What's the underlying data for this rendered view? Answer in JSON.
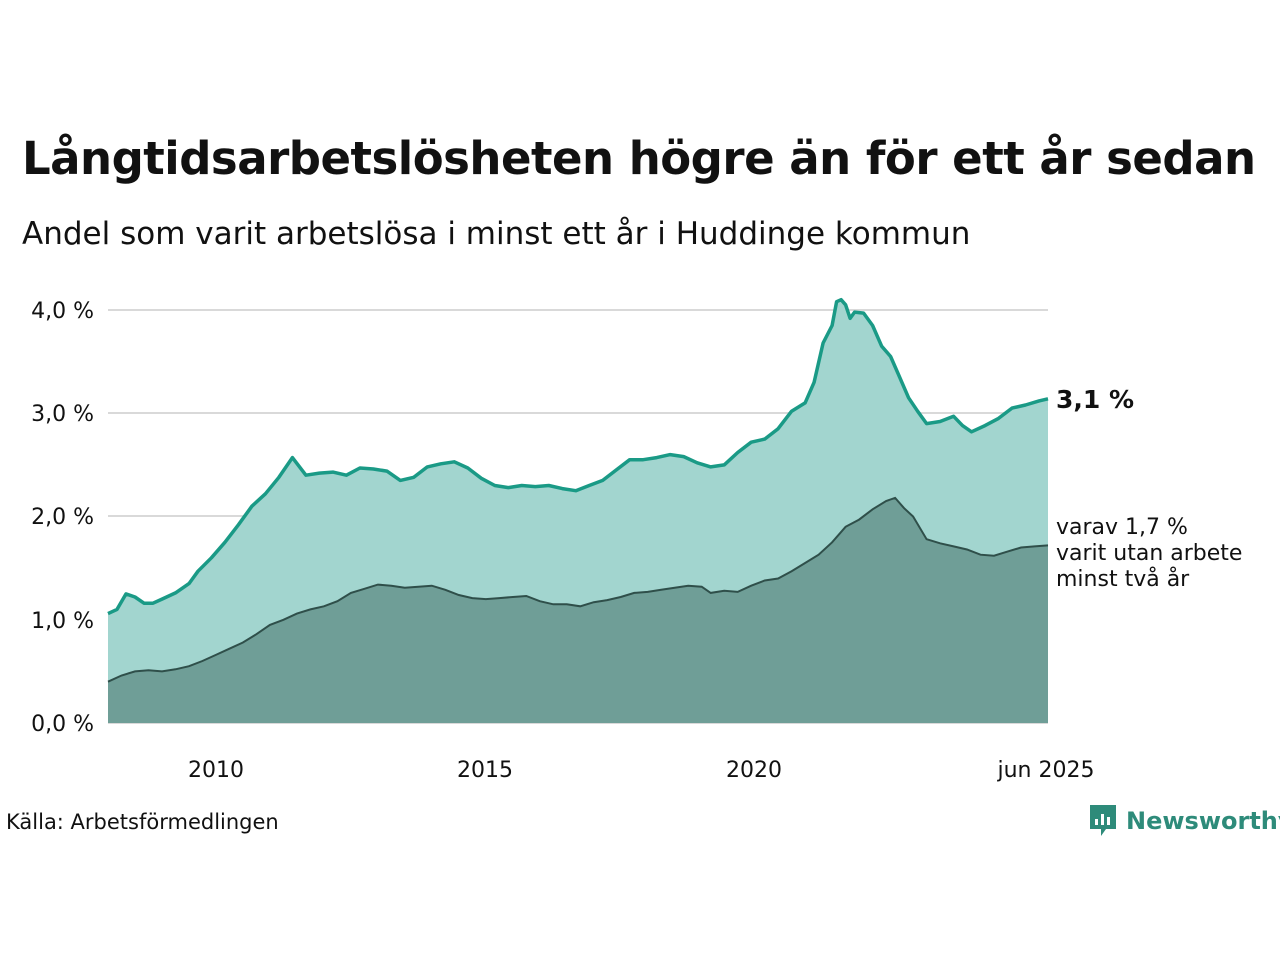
{
  "header": {
    "title": "Långtidsarbetslösheten högre än för ett år sedan",
    "subtitle": "Andel som varit arbetslösa i minst ett år i Huddinge kommun"
  },
  "footer": {
    "source": "Källa: Arbetsförmedlingen",
    "brand": "Newsworthy"
  },
  "colors": {
    "upper_line": "#1a9a86",
    "upper_fill": "#a2d5cf",
    "lower_line": "#2f4f4a",
    "lower_fill": "#6f9e97",
    "grid": "#d9d9d9",
    "brand": "#2e8b7a"
  },
  "chart_data": {
    "type": "area",
    "x_range": [
      "2008-01",
      "2025-06"
    ],
    "ylim": [
      0,
      4.0
    ],
    "y_ticks": [
      {
        "value": 0,
        "label": "0,0 %"
      },
      {
        "value": 1,
        "label": "1,0 %"
      },
      {
        "value": 2,
        "label": "2,0 %"
      },
      {
        "value": 3,
        "label": "3,0 %"
      },
      {
        "value": 4,
        "label": "4,0 %"
      }
    ],
    "x_ticks": [
      {
        "date": "2010-01",
        "label": "2010"
      },
      {
        "date": "2015-01",
        "label": "2015"
      },
      {
        "date": "2020-01",
        "label": "2020"
      },
      {
        "date": "2025-06",
        "label": "jun 2025"
      }
    ],
    "grid": true,
    "annotations": {
      "upper_value": "3,1 %",
      "lower_lines": [
        "varav 1,7 %",
        "varit utan arbete",
        "minst två år"
      ]
    },
    "series": [
      {
        "key": "minst_ett_ar",
        "points": [
          [
            "2008-01",
            1.06
          ],
          [
            "2008-03",
            1.1
          ],
          [
            "2008-05",
            1.25
          ],
          [
            "2008-07",
            1.22
          ],
          [
            "2008-09",
            1.16
          ],
          [
            "2008-11",
            1.16
          ],
          [
            "2009-01",
            1.2
          ],
          [
            "2009-04",
            1.26
          ],
          [
            "2009-07",
            1.35
          ],
          [
            "2009-09",
            1.47
          ],
          [
            "2009-12",
            1.6
          ],
          [
            "2010-03",
            1.75
          ],
          [
            "2010-06",
            1.92
          ],
          [
            "2010-09",
            2.1
          ],
          [
            "2010-12",
            2.22
          ],
          [
            "2011-03",
            2.38
          ],
          [
            "2011-06",
            2.57
          ],
          [
            "2011-09",
            2.4
          ],
          [
            "2011-12",
            2.42
          ],
          [
            "2012-03",
            2.43
          ],
          [
            "2012-06",
            2.4
          ],
          [
            "2012-09",
            2.47
          ],
          [
            "2012-12",
            2.46
          ],
          [
            "2013-03",
            2.44
          ],
          [
            "2013-06",
            2.35
          ],
          [
            "2013-09",
            2.38
          ],
          [
            "2013-12",
            2.48
          ],
          [
            "2014-03",
            2.51
          ],
          [
            "2014-06",
            2.53
          ],
          [
            "2014-09",
            2.47
          ],
          [
            "2014-12",
            2.37
          ],
          [
            "2015-03",
            2.3
          ],
          [
            "2015-06",
            2.28
          ],
          [
            "2015-09",
            2.3
          ],
          [
            "2015-12",
            2.29
          ],
          [
            "2016-03",
            2.3
          ],
          [
            "2016-06",
            2.27
          ],
          [
            "2016-09",
            2.25
          ],
          [
            "2016-12",
            2.3
          ],
          [
            "2017-03",
            2.35
          ],
          [
            "2017-06",
            2.45
          ],
          [
            "2017-09",
            2.55
          ],
          [
            "2017-12",
            2.55
          ],
          [
            "2018-03",
            2.57
          ],
          [
            "2018-06",
            2.6
          ],
          [
            "2018-09",
            2.58
          ],
          [
            "2018-12",
            2.52
          ],
          [
            "2019-03",
            2.48
          ],
          [
            "2019-06",
            2.5
          ],
          [
            "2019-09",
            2.62
          ],
          [
            "2019-12",
            2.72
          ],
          [
            "2020-03",
            2.75
          ],
          [
            "2020-06",
            2.85
          ],
          [
            "2020-09",
            3.02
          ],
          [
            "2020-12",
            3.1
          ],
          [
            "2021-02",
            3.3
          ],
          [
            "2021-04",
            3.68
          ],
          [
            "2021-06",
            3.85
          ],
          [
            "2021-07",
            4.08
          ],
          [
            "2021-08",
            4.1
          ],
          [
            "2021-09",
            4.05
          ],
          [
            "2021-10",
            3.92
          ],
          [
            "2021-11",
            3.98
          ],
          [
            "2022-01",
            3.97
          ],
          [
            "2022-03",
            3.85
          ],
          [
            "2022-05",
            3.65
          ],
          [
            "2022-07",
            3.55
          ],
          [
            "2022-09",
            3.35
          ],
          [
            "2022-11",
            3.15
          ],
          [
            "2023-01",
            3.02
          ],
          [
            "2023-03",
            2.9
          ],
          [
            "2023-06",
            2.92
          ],
          [
            "2023-09",
            2.97
          ],
          [
            "2023-11",
            2.88
          ],
          [
            "2024-01",
            2.82
          ],
          [
            "2024-04",
            2.88
          ],
          [
            "2024-07",
            2.95
          ],
          [
            "2024-10",
            3.05
          ],
          [
            "2025-01",
            3.08
          ],
          [
            "2025-04",
            3.12
          ],
          [
            "2025-06",
            3.14
          ]
        ]
      },
      {
        "key": "minst_tva_ar",
        "points": [
          [
            "2008-01",
            0.4
          ],
          [
            "2008-04",
            0.46
          ],
          [
            "2008-07",
            0.5
          ],
          [
            "2008-10",
            0.51
          ],
          [
            "2009-01",
            0.5
          ],
          [
            "2009-04",
            0.52
          ],
          [
            "2009-07",
            0.55
          ],
          [
            "2009-10",
            0.6
          ],
          [
            "2010-01",
            0.66
          ],
          [
            "2010-04",
            0.72
          ],
          [
            "2010-07",
            0.78
          ],
          [
            "2010-10",
            0.86
          ],
          [
            "2011-01",
            0.95
          ],
          [
            "2011-04",
            1.0
          ],
          [
            "2011-07",
            1.06
          ],
          [
            "2011-10",
            1.1
          ],
          [
            "2012-01",
            1.13
          ],
          [
            "2012-04",
            1.18
          ],
          [
            "2012-07",
            1.26
          ],
          [
            "2012-10",
            1.3
          ],
          [
            "2013-01",
            1.34
          ],
          [
            "2013-04",
            1.33
          ],
          [
            "2013-07",
            1.31
          ],
          [
            "2013-10",
            1.32
          ],
          [
            "2014-01",
            1.33
          ],
          [
            "2014-04",
            1.29
          ],
          [
            "2014-07",
            1.24
          ],
          [
            "2014-10",
            1.21
          ],
          [
            "2015-01",
            1.2
          ],
          [
            "2015-04",
            1.21
          ],
          [
            "2015-07",
            1.22
          ],
          [
            "2015-10",
            1.23
          ],
          [
            "2016-01",
            1.18
          ],
          [
            "2016-04",
            1.15
          ],
          [
            "2016-07",
            1.15
          ],
          [
            "2016-10",
            1.13
          ],
          [
            "2017-01",
            1.17
          ],
          [
            "2017-04",
            1.19
          ],
          [
            "2017-07",
            1.22
          ],
          [
            "2017-10",
            1.26
          ],
          [
            "2018-01",
            1.27
          ],
          [
            "2018-04",
            1.29
          ],
          [
            "2018-07",
            1.31
          ],
          [
            "2018-10",
            1.33
          ],
          [
            "2019-01",
            1.32
          ],
          [
            "2019-03",
            1.26
          ],
          [
            "2019-06",
            1.28
          ],
          [
            "2019-09",
            1.27
          ],
          [
            "2019-12",
            1.33
          ],
          [
            "2020-03",
            1.38
          ],
          [
            "2020-06",
            1.4
          ],
          [
            "2020-09",
            1.47
          ],
          [
            "2020-12",
            1.55
          ],
          [
            "2021-03",
            1.63
          ],
          [
            "2021-06",
            1.75
          ],
          [
            "2021-09",
            1.9
          ],
          [
            "2021-12",
            1.97
          ],
          [
            "2022-03",
            2.07
          ],
          [
            "2022-06",
            2.15
          ],
          [
            "2022-08",
            2.18
          ],
          [
            "2022-10",
            2.08
          ],
          [
            "2022-12",
            2.0
          ],
          [
            "2023-03",
            1.78
          ],
          [
            "2023-06",
            1.74
          ],
          [
            "2023-09",
            1.71
          ],
          [
            "2023-12",
            1.68
          ],
          [
            "2024-03",
            1.63
          ],
          [
            "2024-06",
            1.62
          ],
          [
            "2024-09",
            1.66
          ],
          [
            "2024-12",
            1.7
          ],
          [
            "2025-03",
            1.71
          ],
          [
            "2025-06",
            1.72
          ]
        ]
      }
    ]
  }
}
